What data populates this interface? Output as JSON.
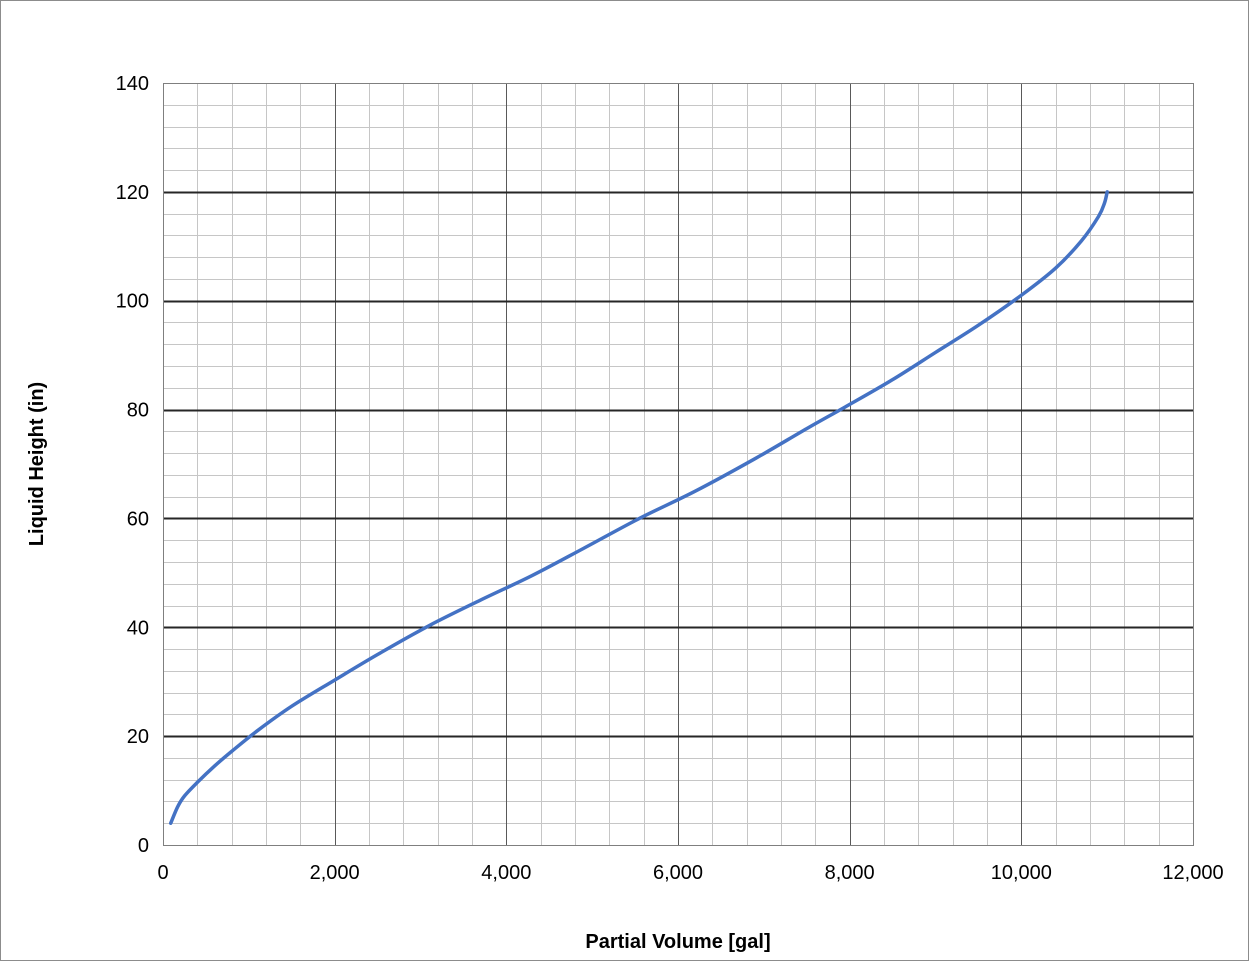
{
  "chart_data": {
    "type": "line",
    "title": "",
    "xlabel": "Partial Volume [gal]",
    "ylabel": "Liquid Height (in)",
    "xlim": [
      0,
      12000
    ],
    "ylim": [
      0,
      140
    ],
    "x_major_step": 2000,
    "x_minor_step": 400,
    "y_major_step": 20,
    "y_minor_step": 4,
    "x_tick_labels": [
      "0",
      "2,000",
      "4,000",
      "6,000",
      "8,000",
      "10,000",
      "12,000"
    ],
    "y_tick_labels": [
      "0",
      "20",
      "40",
      "60",
      "80",
      "100",
      "120",
      "140"
    ],
    "grid": true,
    "legend": "none",
    "series": [
      {
        "color": "#4472c4",
        "x": [
          90,
          170,
          250,
          400,
          600,
          800,
          1100,
          1500,
          2000,
          2500,
          3100,
          3700,
          4300,
          4900,
          5550,
          6200,
          6900,
          7500,
          7950,
          8500,
          9000,
          9500,
          10000,
          10400,
          10700,
          10900,
          10970,
          11000
        ],
        "y": [
          4,
          7,
          9,
          11.5,
          14.5,
          17.2,
          21,
          25.5,
          30.3,
          35,
          40.3,
          45,
          49.5,
          54.5,
          60,
          65,
          71,
          76.5,
          80.5,
          85.5,
          90.5,
          95.5,
          101,
          106,
          111,
          115.5,
          118,
          120
        ]
      }
    ]
  }
}
